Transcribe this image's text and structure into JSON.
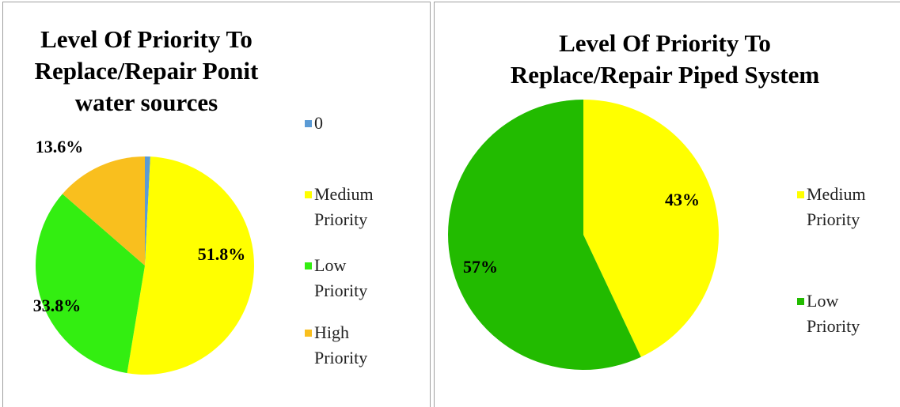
{
  "chart_data": [
    {
      "type": "pie",
      "title": "Level Of Priority To Replace/Repair Ponit water sources",
      "categories": [
        "0",
        "Medium Priority",
        "Low Priority",
        "High Priority"
      ],
      "values": [
        0.8,
        51.8,
        33.8,
        13.6
      ],
      "value_labels": [
        null,
        "51.8%",
        "33.8%",
        "13.6%"
      ],
      "colors": [
        "#5b9bd5",
        "#ffff00",
        "#33ee11",
        "#f9bf1e"
      ]
    },
    {
      "type": "pie",
      "title": "Level Of Priority To Replace/Repair Piped System",
      "categories": [
        "Medium Priority",
        "Low Priority"
      ],
      "values": [
        43,
        57
      ],
      "value_labels": [
        "43%",
        "57%"
      ],
      "colors": [
        "#ffff00",
        "#22bb00"
      ]
    }
  ]
}
